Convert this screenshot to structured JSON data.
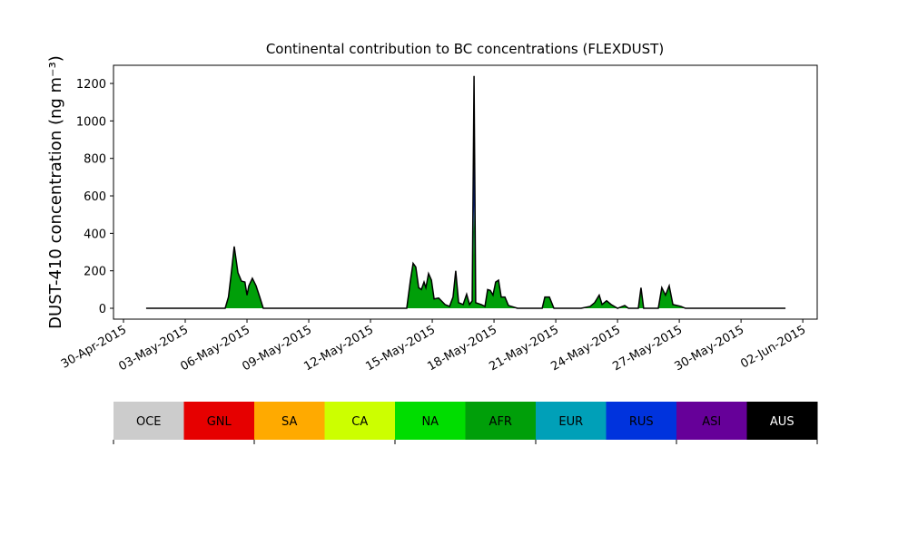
{
  "chart_data": {
    "type": "stacked-area",
    "title": "Continental contribution to BC concentrations (FLEXDUST)",
    "y_label": "DUST-410 concentration (ng m⁻³)",
    "x": [
      1.1,
      4.94,
      5.1,
      5.25,
      5.38,
      5.56,
      5.73,
      5.9,
      6.0,
      6.09,
      6.26,
      6.44,
      6.62,
      6.79,
      13.76,
      13.94,
      14.07,
      14.2,
      14.34,
      14.47,
      14.6,
      14.69,
      14.82,
      14.96,
      15.09,
      15.31,
      15.62,
      15.84,
      16.01,
      16.14,
      16.28,
      16.5,
      16.67,
      16.81,
      16.94,
      17.03,
      17.11,
      17.38,
      17.56,
      17.69,
      17.82,
      17.95,
      18.08,
      18.22,
      18.35,
      18.53,
      18.7,
      19.14,
      20.34,
      20.47,
      20.69,
      20.91,
      22.23,
      22.67,
      22.89,
      23.11,
      23.25,
      23.47,
      23.69,
      24.0,
      24.35,
      24.53,
      25.01,
      25.14,
      25.27,
      25.98,
      26.15,
      26.33,
      26.51,
      26.69,
      27.08,
      27.3,
      32.16
    ],
    "series": [
      {
        "name": "AFR",
        "color": "#009f09",
        "values": [
          0,
          0,
          60,
          200,
          330,
          190,
          145,
          140,
          70,
          120,
          160,
          120,
          60,
          0,
          0,
          150,
          240,
          220,
          110,
          100,
          140,
          110,
          185,
          150,
          50,
          55,
          20,
          10,
          60,
          200,
          30,
          20,
          75,
          20,
          40,
          550,
          30,
          20,
          10,
          100,
          95,
          70,
          140,
          150,
          60,
          60,
          15,
          0,
          0,
          60,
          60,
          0,
          0,
          10,
          30,
          70,
          20,
          40,
          20,
          0,
          15,
          0,
          0,
          110,
          0,
          0,
          110,
          70,
          120,
          20,
          10,
          0,
          0
        ]
      },
      {
        "name": "RUS",
        "color": "#0033dd",
        "values": [
          0,
          0,
          0,
          0,
          0,
          0,
          0,
          0,
          0,
          0,
          0,
          0,
          0,
          0,
          0,
          0,
          0,
          0,
          0,
          0,
          0,
          0,
          0,
          0,
          0,
          0,
          0,
          0,
          0,
          0,
          0,
          0,
          0,
          0,
          0,
          690,
          0,
          0,
          0,
          0,
          0,
          0,
          0,
          0,
          0,
          0,
          0,
          0,
          0,
          0,
          0,
          0,
          0,
          0,
          0,
          0,
          0,
          0,
          0,
          0,
          0,
          0,
          0,
          0,
          0,
          0,
          0,
          0,
          0,
          0,
          0,
          0,
          0
        ]
      }
    ],
    "xlim": [
      -0.485,
      33.7
    ],
    "xticks": [
      {
        "value": 0,
        "label": "30-Apr-2015"
      },
      {
        "value": 3,
        "label": "03-May-2015"
      },
      {
        "value": 6,
        "label": "06-May-2015"
      },
      {
        "value": 9,
        "label": "09-May-2015"
      },
      {
        "value": 12,
        "label": "12-May-2015"
      },
      {
        "value": 15,
        "label": "15-May-2015"
      },
      {
        "value": 18,
        "label": "18-May-2015"
      },
      {
        "value": 21,
        "label": "21-May-2015"
      },
      {
        "value": 24,
        "label": "24-May-2015"
      },
      {
        "value": 27,
        "label": "27-May-2015"
      },
      {
        "value": 30,
        "label": "30-May-2015"
      },
      {
        "value": 33,
        "label": "02-Jun-2015"
      }
    ],
    "ylim": [
      -58,
      1297
    ],
    "yticks": [
      0,
      200,
      400,
      600,
      800,
      1000,
      1200
    ],
    "outline_color": "#000000",
    "colorbar": {
      "labels": [
        "OCE",
        "GNL",
        "SA",
        "CA",
        "NA",
        "AFR",
        "EUR",
        "RUS",
        "ASI",
        "AUS"
      ],
      "colors": [
        "#cccccc",
        "#e60000",
        "#ffaa00",
        "#ccff00",
        "#00dd00",
        "#009f09",
        "#00a0b8",
        "#0033dd",
        "#660099",
        "#000000"
      ],
      "label_colors": [
        "#000000",
        "#000000",
        "#000000",
        "#000000",
        "#000000",
        "#000000",
        "#000000",
        "#000000",
        "#000000",
        "#ffffff"
      ]
    }
  }
}
